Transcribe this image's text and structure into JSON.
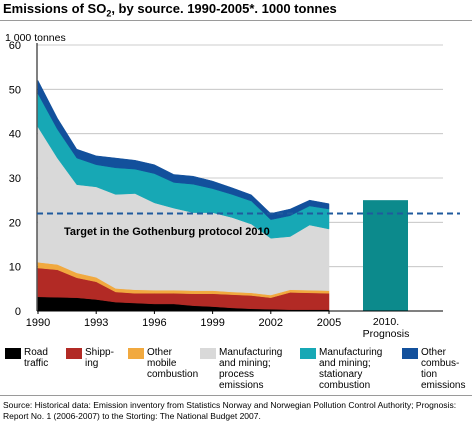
{
  "title": {
    "main": "Emissions of SO",
    "sub": "2",
    "rest": ", by source. 1990-2005*. 1000 tonnes"
  },
  "colors": {
    "road": "#000000",
    "shipping": "#b22a25",
    "other_mobile": "#f1a93f",
    "manuf_process": "#d9d9d9",
    "manuf_stationary": "#17a8b5",
    "other_combustion": "#12509c",
    "prognosis_bar": "#0c8a8c",
    "target_line": "#1f5a9e"
  },
  "legend": [
    {
      "key": "road",
      "label": "Road\ntraffic"
    },
    {
      "key": "shipping",
      "label": "Shipp-\ning"
    },
    {
      "key": "other_mobile",
      "label": "Other\nmobile\ncombustion"
    },
    {
      "key": "manuf_process",
      "label": "Manufacturing\nand mining;\nprocess\nemissions"
    },
    {
      "key": "manuf_stationary",
      "label": "Manufacturing\nand mining;\nstationary\ncombustion"
    },
    {
      "key": "other_combustion",
      "label": "Other\ncombus-\ntion\nemissions"
    }
  ],
  "source": "Source: Historical data: Emission inventory from Statistics Norway and Norwegian Pollution Control Authority; Prognosis: Report No. 1 (2006-2007) to the Storting: The National Budget 2007.",
  "chart_data": {
    "type": "area",
    "ylabel": "1 000 tonnes",
    "ylim": [
      0,
      60
    ],
    "yticks": [
      "0",
      "10",
      "20",
      "30",
      "40",
      "50",
      "60"
    ],
    "x": [
      1990,
      1991,
      1992,
      1993,
      1994,
      1995,
      1996,
      1997,
      1998,
      1999,
      2000,
      2001,
      2002,
      2003,
      2004,
      2005
    ],
    "xtick_labels": [
      "1990",
      "1993",
      "1996",
      "1999",
      "2002",
      "2005"
    ],
    "stacked": true,
    "series": [
      {
        "name": "Road traffic",
        "key": "road",
        "values": [
          3.2,
          3.1,
          3.0,
          2.6,
          2.0,
          1.8,
          1.6,
          1.6,
          1.2,
          1.0,
          0.7,
          0.5,
          0.4,
          0.3,
          0.3,
          0.3
        ]
      },
      {
        "name": "Shipping",
        "key": "shipping",
        "values": [
          6.5,
          6.2,
          4.5,
          4.0,
          2.3,
          2.2,
          2.4,
          2.4,
          2.7,
          2.9,
          3.0,
          3.0,
          2.6,
          3.9,
          3.8,
          3.7
        ]
      },
      {
        "name": "Other mobile combustion",
        "key": "other_mobile",
        "values": [
          1.3,
          1.2,
          1.1,
          1.0,
          0.8,
          0.8,
          0.7,
          0.7,
          0.7,
          0.7,
          0.6,
          0.6,
          0.6,
          0.6,
          0.6,
          0.6
        ]
      },
      {
        "name": "Manufacturing and mining; process emissions",
        "key": "manuf_process",
        "values": [
          30.5,
          24.0,
          19.9,
          20.4,
          21.2,
          21.7,
          19.7,
          18.5,
          17.6,
          17.6,
          16.8,
          15.5,
          12.8,
          12.0,
          14.7,
          13.9
        ]
      },
      {
        "name": "Manufacturing and mining; stationary combustion",
        "key": "manuf_stationary",
        "values": [
          7.5,
          6.5,
          6.0,
          5.0,
          6.0,
          5.5,
          6.6,
          5.8,
          6.4,
          5.4,
          5.2,
          5.2,
          4.2,
          4.7,
          4.3,
          4.5
        ]
      },
      {
        "name": "Other combustion emissions",
        "key": "other_combustion",
        "values": [
          3.0,
          2.5,
          2.0,
          2.0,
          2.2,
          2.0,
          2.0,
          1.8,
          1.8,
          1.7,
          1.5,
          1.4,
          1.4,
          1.5,
          1.3,
          1.2
        ]
      }
    ],
    "target": {
      "label": "Target in the Gothenburg protocol 2010",
      "value": 22
    },
    "prognosis": {
      "label_line1": "2010.",
      "label_line2": "Prognosis",
      "value": 25
    }
  }
}
